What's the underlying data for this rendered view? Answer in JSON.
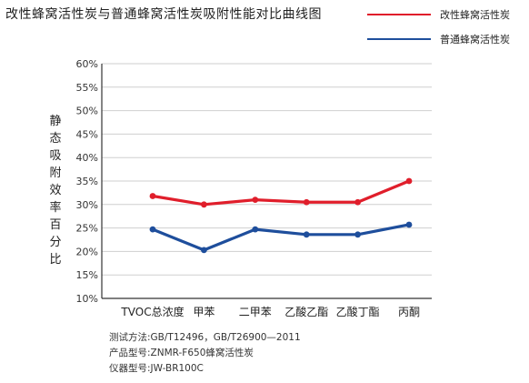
{
  "title": "改性蜂窝活性炭与普通蜂窝活性炭吸附性能对比曲线图",
  "colors": {
    "modified": "#e01e2b",
    "ordinary": "#1e4e9c",
    "axis": "#333333",
    "grid": "#cfcfcf"
  },
  "notes": {
    "method": "测试方法:GB/T12496，GB/T26900—2011",
    "model": "产品型号:ZNMR-F650蜂窝活性炭",
    "instrument": "仪器型号:JW-BR100C"
  },
  "chart_data": {
    "type": "line",
    "title": "改性蜂窝活性炭与普通蜂窝活性炭吸附性能对比曲线图",
    "xlabel": "",
    "ylabel": "静态吸附效率百分比",
    "categories": [
      "TVOC总浓度",
      "甲苯",
      "二甲苯",
      "乙酸乙酯",
      "乙酸丁酯",
      "丙酮"
    ],
    "yticks": [
      "10%",
      "15%",
      "20%",
      "25%",
      "30%",
      "35%",
      "40%",
      "45%",
      "50%",
      "55%",
      "60%"
    ],
    "ylim": [
      10,
      60
    ],
    "grid": true,
    "legend": "top-right",
    "series": [
      {
        "name": "改性蜂窝活性炭",
        "color": "#e01e2b",
        "values": [
          31.8,
          30.0,
          31.0,
          30.5,
          30.5,
          35.0
        ]
      },
      {
        "name": "普通蜂窝活性炭",
        "color": "#1e4e9c",
        "values": [
          24.7,
          20.3,
          24.7,
          23.6,
          23.6,
          25.7
        ]
      }
    ]
  }
}
